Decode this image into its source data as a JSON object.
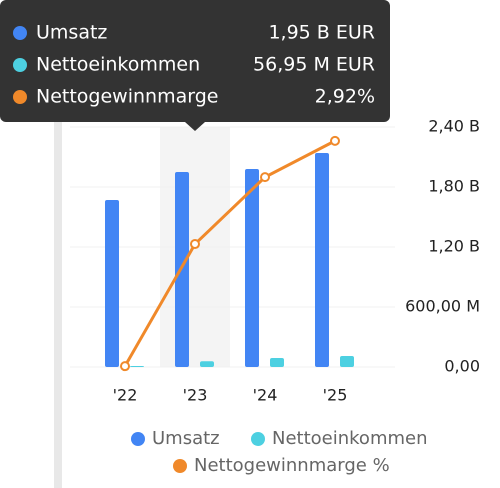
{
  "chart_data": {
    "type": "bar",
    "categories": [
      "'22",
      "'23",
      "'24",
      "'25"
    ],
    "series": [
      {
        "name": "Umsatz",
        "color": "#4285f4",
        "values": [
          1670000000,
          1950000000,
          1980000000,
          2140000000
        ],
        "value_labels": [
          null,
          "1,95 B EUR",
          null,
          null
        ]
      },
      {
        "name": "Nettoeinkommen",
        "color": "#4dd0e1",
        "values": [
          10000000,
          56950000,
          90000000,
          110000000
        ],
        "value_labels": [
          null,
          "56,95 M EUR",
          null,
          null
        ]
      },
      {
        "name": "Nettogewinnmarge",
        "type": "line",
        "axis": "y2",
        "color": "#f0892a",
        "values": [
          0.02,
          2.92,
          4.51,
          5.37
        ],
        "value_labels": [
          null,
          "2,92%",
          null,
          null
        ]
      }
    ],
    "legend": [
      "Umsatz",
      "Nettoeinkommen",
      "Nettogewinnmarge %"
    ],
    "ylim": [
      0,
      2400000000
    ],
    "yticks": [
      {
        "value": 0,
        "label": "0,00"
      },
      {
        "value": 600000000,
        "label": "600,00 M"
      },
      {
        "value": 1200000000,
        "label": "1,20 B"
      },
      {
        "value": 1800000000,
        "label": "1,80 B"
      },
      {
        "value": 2400000000,
        "label": "2,40 B"
      }
    ],
    "y2lim": [
      0,
      5.7
    ],
    "grid": true
  }
}
